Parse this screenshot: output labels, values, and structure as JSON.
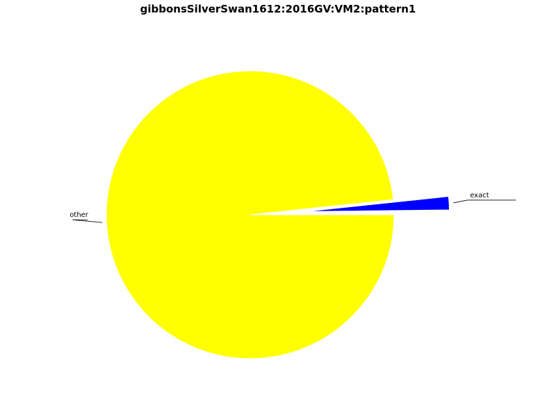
{
  "chart_data": {
    "type": "pie",
    "title": "gibbonsSilverSwan1612:2016GV:VM2:pattern1",
    "slices": [
      {
        "label": "other",
        "value": 98.5,
        "color": "#ffff00",
        "explode": 0
      },
      {
        "label": "exact",
        "value": 1.5,
        "color": "#0000ff",
        "explode": 0.7
      },
      {
        "label": "",
        "value": 0.03,
        "color": "#0000ff",
        "explode": 0.7
      },
      {
        "label": "",
        "value": 0.03,
        "color": "#0000ff",
        "explode": 0.7
      },
      {
        "label": "",
        "value": 0.03,
        "color": "#0000ff",
        "explode": 0.7
      },
      {
        "label": "",
        "value": 0.03,
        "color": "#0000ff",
        "explode": 0.7
      },
      {
        "label": "",
        "value": 0.03,
        "color": "#0000ff",
        "explode": 0.7
      },
      {
        "label": "",
        "value": 0.03,
        "color": "#0000ff",
        "explode": 0.7
      }
    ],
    "start_angle": 0,
    "direction": "clockwise",
    "legend": "none"
  }
}
